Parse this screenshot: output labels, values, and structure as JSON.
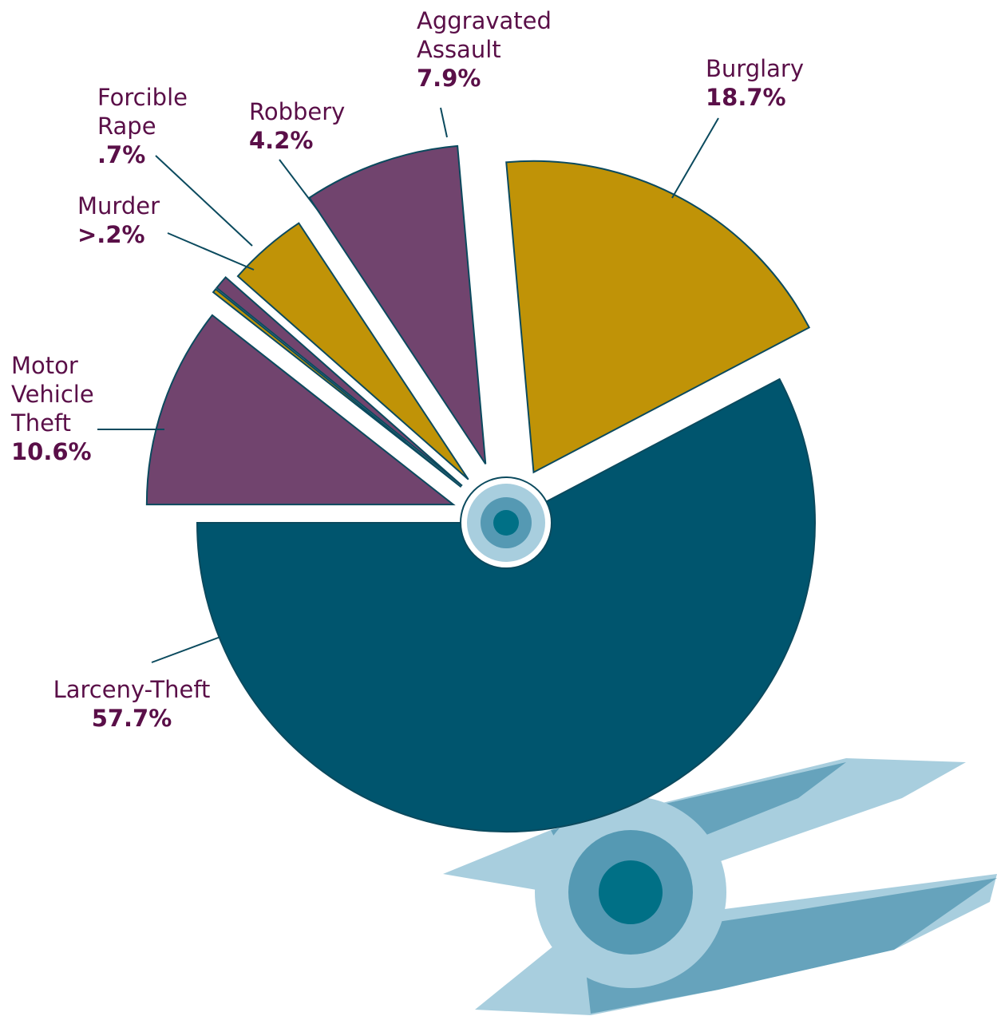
{
  "chart_data": {
    "type": "pie",
    "categories": [
      "Larceny-Theft",
      "Burglary",
      "Aggravated Assault",
      "Robbery",
      "Forcible Rape",
      "Murder",
      "Motor Vehicle Theft"
    ],
    "values": [
      57.7,
      18.7,
      7.9,
      4.2,
      0.7,
      0.2,
      10.6
    ],
    "value_labels": [
      "57.7%",
      "18.7%",
      "7.9%",
      "4.2%",
      ".7%",
      ">.2%",
      "10.6%"
    ],
    "colors": [
      "#00556e",
      "#c09307",
      "#71446e",
      "#c09307",
      "#71446e",
      "#c09307",
      "#71446e"
    ]
  }
}
